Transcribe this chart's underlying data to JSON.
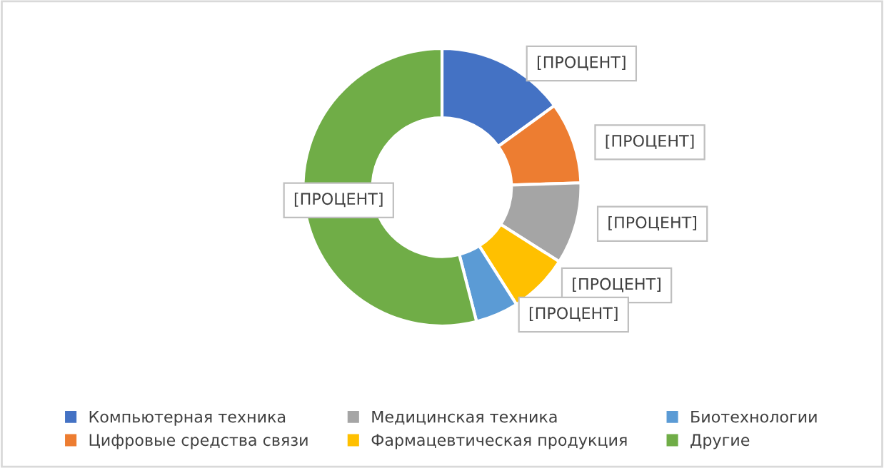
{
  "chart_data": {
    "type": "donut",
    "categories": [
      "Компьютерная техника",
      "Цифровые средства связи",
      "Медицинская техника",
      "Фармацевтическая продукция",
      "Биотехнологии",
      "Другие"
    ],
    "values": [
      15,
      9.5,
      9.5,
      7,
      5,
      54
    ],
    "colors": [
      "#4472c4",
      "#ed7d31",
      "#a5a5a5",
      "#ffc000",
      "#5b9bd5",
      "#70ad47"
    ],
    "value_labels": [
      "[ПРОЦЕНТ]",
      "[ПРОЦЕНТ]",
      "[ПРОЦЕНТ]",
      "[ПРОЦЕНТ]",
      "[ПРОЦЕНТ]",
      "[ПРОЦЕНТ]"
    ],
    "legend": "bottom"
  }
}
